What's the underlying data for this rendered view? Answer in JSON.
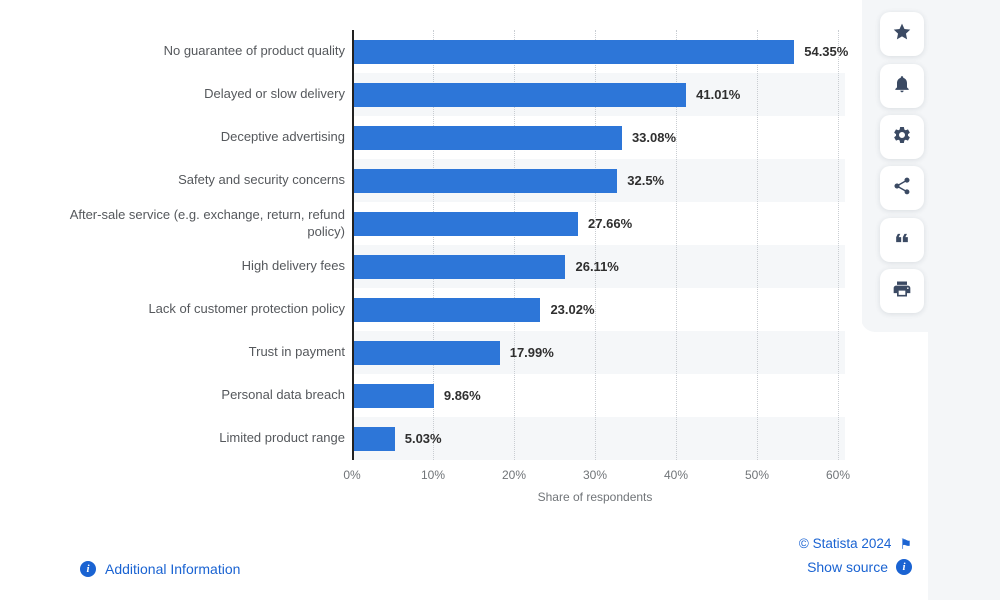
{
  "chart_data": {
    "type": "bar",
    "orientation": "horizontal",
    "categories": [
      "No guarantee of product quality",
      "Delayed or slow delivery",
      "Deceptive advertising",
      "Safety and security concerns",
      "After-sale service (e.g. exchange, return, refund policy)",
      "High delivery fees",
      "Lack of customer protection policy",
      "Trust in payment",
      "Personal data breach",
      "Limited product range"
    ],
    "values": [
      54.35,
      41.01,
      33.08,
      32.5,
      27.66,
      26.11,
      23.02,
      17.99,
      9.86,
      5.03
    ],
    "value_labels": [
      "54.35%",
      "41.01%",
      "33.08%",
      "32.5%",
      "27.66%",
      "26.11%",
      "23.02%",
      "17.99%",
      "9.86%",
      "5.03%"
    ],
    "xlabel": "Share of respondents",
    "xlim": [
      0,
      60
    ],
    "xticks": [
      "0%",
      "10%",
      "20%",
      "30%",
      "40%",
      "50%",
      "60%"
    ],
    "grid": "dotted-vertical",
    "zebra_rows": true,
    "bar_color": "#2d76d8",
    "legend": null,
    "title": ""
  },
  "toolbar": {
    "icons": [
      "star-icon",
      "bell-icon",
      "gear-icon",
      "share-icon",
      "quote-icon",
      "print-icon"
    ]
  },
  "footer": {
    "additional_info_label": "Additional Information",
    "copyright": "© Statista 2024",
    "show_source_label": "Show source"
  },
  "icons": {
    "info_glyph": "i",
    "flag_glyph": "⚑"
  },
  "colors": {
    "bar": "#2d76d8",
    "link_blue": "#1a63d2",
    "rail_gray": "#f4f6f8",
    "stripe_gray": "#f5f7f9",
    "axis_dark": "#222222",
    "icon_slate": "#3b4a63"
  }
}
